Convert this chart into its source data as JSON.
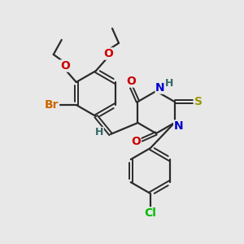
{
  "background_color": "#e8e8e8",
  "bond_color": "#2a2a2a",
  "bond_width": 1.6,
  "atom_colors": {
    "Br": "#cc6600",
    "O": "#cc0000",
    "N": "#0000cc",
    "S": "#999900",
    "Cl": "#00bb00",
    "H": "#336666",
    "C": "#2a2a2a"
  },
  "font_size_atom": 10,
  "font_size_small": 8
}
